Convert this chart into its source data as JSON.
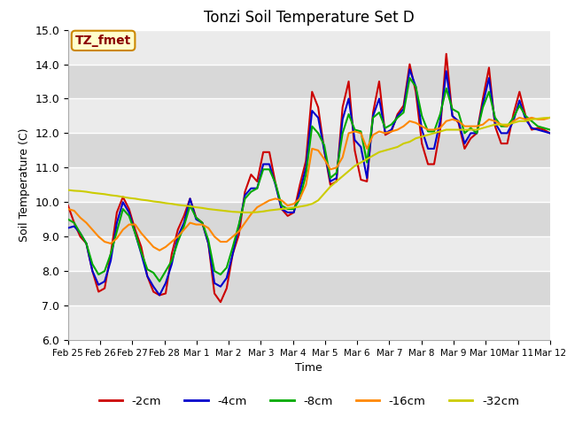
{
  "title": "Tonzi Soil Temperature Set D",
  "xlabel": "Time",
  "ylabel": "Soil Temperature (C)",
  "ylim": [
    6.0,
    15.0
  ],
  "yticks": [
    6.0,
    7.0,
    8.0,
    9.0,
    10.0,
    11.0,
    12.0,
    13.0,
    14.0,
    15.0
  ],
  "bg_light": "#ebebeb",
  "bg_dark": "#d8d8d8",
  "legend_label": "TZ_fmet",
  "series_colors": {
    "-2cm": "#cc0000",
    "-4cm": "#0000cc",
    "-8cm": "#00aa00",
    "-16cm": "#ff8800",
    "-32cm": "#cccc00"
  },
  "x_tick_labels": [
    "Feb 25",
    "Feb 26",
    "Feb 27",
    "Feb 28",
    "Mar 1",
    "Mar 2",
    "Mar 3",
    "Mar 4",
    "Mar 5",
    "Mar 6",
    "Mar 7",
    "Mar 8",
    "Mar 9",
    "Mar 10",
    "Mar 11",
    "Mar 12"
  ],
  "data": {
    "-2cm": [
      9.9,
      9.4,
      9.0,
      8.8,
      8.0,
      7.4,
      7.5,
      8.5,
      9.7,
      10.15,
      9.8,
      9.2,
      8.7,
      7.85,
      7.4,
      7.3,
      7.35,
      8.5,
      9.2,
      9.6,
      10.1,
      9.55,
      9.4,
      8.8,
      7.35,
      7.1,
      7.5,
      8.5,
      9.05,
      10.3,
      10.8,
      10.6,
      11.45,
      11.45,
      10.55,
      9.8,
      9.6,
      9.7,
      10.5,
      11.2,
      13.2,
      12.75,
      11.5,
      10.5,
      10.6,
      12.75,
      13.5,
      11.5,
      10.65,
      10.6,
      12.6,
      13.5,
      11.95,
      12.05,
      12.55,
      12.8,
      14.0,
      13.2,
      11.7,
      11.1,
      11.1,
      12.1,
      14.3,
      12.5,
      12.3,
      11.55,
      11.85,
      12.0,
      13.0,
      13.9,
      12.2,
      11.7,
      11.7,
      12.55,
      13.2,
      12.5,
      12.1,
      12.15,
      12.1,
      12.0
    ],
    "-4cm": [
      9.25,
      9.3,
      9.1,
      8.8,
      8.0,
      7.6,
      7.7,
      8.3,
      9.4,
      10.0,
      9.7,
      9.1,
      8.5,
      7.85,
      7.55,
      7.3,
      7.65,
      8.2,
      9.0,
      9.4,
      10.1,
      9.5,
      9.4,
      8.8,
      7.65,
      7.55,
      7.8,
      8.5,
      9.3,
      10.2,
      10.4,
      10.4,
      11.1,
      11.1,
      10.5,
      9.8,
      9.7,
      9.7,
      10.3,
      11.0,
      12.65,
      12.45,
      11.5,
      10.6,
      10.7,
      12.4,
      13.0,
      11.8,
      11.6,
      10.7,
      12.5,
      13.0,
      12.0,
      12.1,
      12.5,
      12.7,
      13.85,
      13.35,
      12.1,
      11.55,
      11.55,
      12.35,
      13.8,
      12.5,
      12.35,
      11.7,
      12.0,
      12.0,
      12.85,
      13.6,
      12.3,
      12.0,
      12.0,
      12.35,
      12.95,
      12.4,
      12.15,
      12.1,
      12.05,
      12.0
    ],
    "-8cm": [
      9.5,
      9.4,
      9.1,
      8.8,
      8.2,
      7.9,
      8.0,
      8.5,
      9.15,
      9.8,
      9.6,
      9.1,
      8.55,
      8.05,
      7.95,
      7.7,
      8.0,
      8.3,
      8.85,
      9.3,
      9.9,
      9.55,
      9.4,
      8.9,
      8.0,
      7.9,
      8.1,
      8.7,
      9.35,
      10.1,
      10.3,
      10.4,
      10.95,
      10.95,
      10.55,
      9.9,
      9.8,
      9.8,
      10.1,
      10.8,
      12.2,
      12.0,
      11.65,
      10.7,
      10.85,
      12.0,
      12.55,
      12.1,
      12.05,
      11.15,
      12.45,
      12.6,
      12.15,
      12.25,
      12.45,
      12.6,
      13.6,
      13.35,
      12.5,
      12.05,
      12.05,
      12.55,
      13.3,
      12.7,
      12.6,
      12.0,
      12.15,
      12.0,
      12.75,
      13.2,
      12.45,
      12.2,
      12.2,
      12.45,
      12.8,
      12.5,
      12.35,
      12.2,
      12.15,
      12.1
    ],
    "-16cm": [
      9.8,
      9.75,
      9.55,
      9.4,
      9.2,
      9.0,
      8.85,
      8.8,
      8.95,
      9.2,
      9.35,
      9.35,
      9.1,
      8.9,
      8.7,
      8.6,
      8.7,
      8.85,
      9.0,
      9.2,
      9.4,
      9.35,
      9.35,
      9.25,
      9.0,
      8.85,
      8.85,
      9.0,
      9.15,
      9.4,
      9.65,
      9.85,
      9.95,
      10.05,
      10.1,
      10.05,
      9.9,
      9.95,
      10.1,
      10.5,
      11.55,
      11.5,
      11.25,
      10.95,
      11.0,
      11.3,
      12.0,
      12.05,
      12.0,
      11.55,
      11.95,
      12.05,
      12.0,
      12.05,
      12.1,
      12.2,
      12.35,
      12.3,
      12.2,
      12.1,
      12.1,
      12.15,
      12.35,
      12.4,
      12.35,
      12.2,
      12.2,
      12.2,
      12.25,
      12.4,
      12.35,
      12.25,
      12.2,
      12.35,
      12.45,
      12.4,
      12.45,
      12.4,
      12.4,
      12.45
    ],
    "-32cm": [
      10.35,
      10.33,
      10.32,
      10.3,
      10.27,
      10.25,
      10.23,
      10.2,
      10.18,
      10.15,
      10.12,
      10.1,
      10.07,
      10.05,
      10.02,
      10.0,
      9.97,
      9.95,
      9.92,
      9.9,
      9.88,
      9.85,
      9.83,
      9.8,
      9.78,
      9.76,
      9.74,
      9.72,
      9.71,
      9.7,
      9.7,
      9.71,
      9.73,
      9.76,
      9.78,
      9.8,
      9.82,
      9.84,
      9.87,
      9.9,
      9.95,
      10.05,
      10.25,
      10.45,
      10.6,
      10.75,
      10.9,
      11.05,
      11.15,
      11.25,
      11.35,
      11.45,
      11.5,
      11.55,
      11.6,
      11.7,
      11.75,
      11.85,
      11.9,
      11.95,
      12.0,
      12.05,
      12.1,
      12.1,
      12.1,
      12.1,
      12.1,
      12.1,
      12.15,
      12.2,
      12.25,
      12.25,
      12.25,
      12.3,
      12.35,
      12.35,
      12.4,
      12.42,
      12.44,
      12.45
    ]
  }
}
